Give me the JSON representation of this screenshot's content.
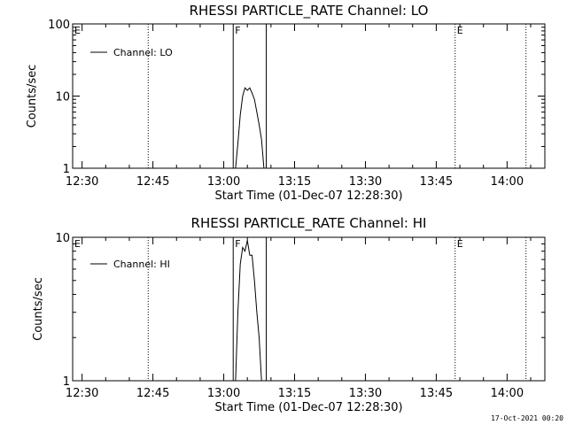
{
  "footer": {
    "timestamp": "17-Oct-2021 00:20"
  },
  "chart_data": [
    {
      "type": "line",
      "title": "RHESSI PARTICLE_RATE Channel: LO",
      "xlabel": "Start Time (01-Dec-07 12:28:30)",
      "ylabel": "Counts/sec",
      "yscale": "log",
      "xlim": [
        "12:28",
        "14:08"
      ],
      "ylim": [
        1,
        100
      ],
      "x_ticks": [
        "12:30",
        "12:45",
        "13:00",
        "13:15",
        "13:30",
        "13:45",
        "14:00"
      ],
      "y_ticks": [
        "1",
        "10",
        "100"
      ],
      "legend": {
        "placement": "top-left",
        "entries": [
          "Channel: LO"
        ]
      },
      "series": [
        {
          "name": "Channel: LO",
          "x": [
            "13:02:30",
            "13:03:00",
            "13:03:30",
            "13:04:00",
            "13:04:30",
            "13:05:00",
            "13:05:30",
            "13:06:00",
            "13:06:30",
            "13:07:00",
            "13:07:30",
            "13:08:00",
            "13:08:30"
          ],
          "y": [
            1.0,
            2.2,
            5.5,
            10.0,
            13.0,
            12.0,
            13.0,
            11.0,
            9.0,
            6.0,
            4.0,
            2.5,
            1.0
          ]
        }
      ],
      "markers": [
        {
          "label": "E",
          "x": "12:28",
          "style": "none"
        },
        {
          "label": "",
          "x": "12:44",
          "style": "dotted"
        },
        {
          "label": "F",
          "x": "13:02",
          "style": "solid"
        },
        {
          "label": "",
          "x": "13:09",
          "style": "solid"
        },
        {
          "label": "E",
          "x": "13:49",
          "style": "dotted"
        },
        {
          "label": "",
          "x": "14:04",
          "style": "dotted"
        }
      ]
    },
    {
      "type": "line",
      "title": "RHESSI PARTICLE_RATE Channel: HI",
      "xlabel": "Start Time (01-Dec-07 12:28:30)",
      "ylabel": "Counts/sec",
      "yscale": "log",
      "xlim": [
        "12:28",
        "14:08"
      ],
      "ylim": [
        1,
        10
      ],
      "x_ticks": [
        "12:30",
        "12:45",
        "13:00",
        "13:15",
        "13:30",
        "13:45",
        "14:00"
      ],
      "y_ticks": [
        "1",
        "10"
      ],
      "legend": {
        "placement": "top-left",
        "entries": [
          "Channel: HI"
        ]
      },
      "series": [
        {
          "name": "Channel: HI",
          "x": [
            "13:02:30",
            "13:03:00",
            "13:03:30",
            "13:04:00",
            "13:04:30",
            "13:05:00",
            "13:05:30",
            "13:06:00",
            "13:06:30",
            "13:07:00",
            "13:07:30",
            "13:08:00"
          ],
          "y": [
            1.0,
            3.0,
            6.5,
            8.5,
            8.0,
            9.5,
            7.5,
            7.5,
            5.0,
            3.0,
            2.0,
            1.0
          ]
        }
      ],
      "markers": [
        {
          "label": "E",
          "x": "12:28",
          "style": "none"
        },
        {
          "label": "",
          "x": "12:44",
          "style": "dotted"
        },
        {
          "label": "F",
          "x": "13:02",
          "style": "solid"
        },
        {
          "label": "",
          "x": "13:09",
          "style": "solid"
        },
        {
          "label": "E",
          "x": "13:49",
          "style": "dotted"
        },
        {
          "label": "",
          "x": "14:04",
          "style": "dotted"
        }
      ]
    }
  ]
}
